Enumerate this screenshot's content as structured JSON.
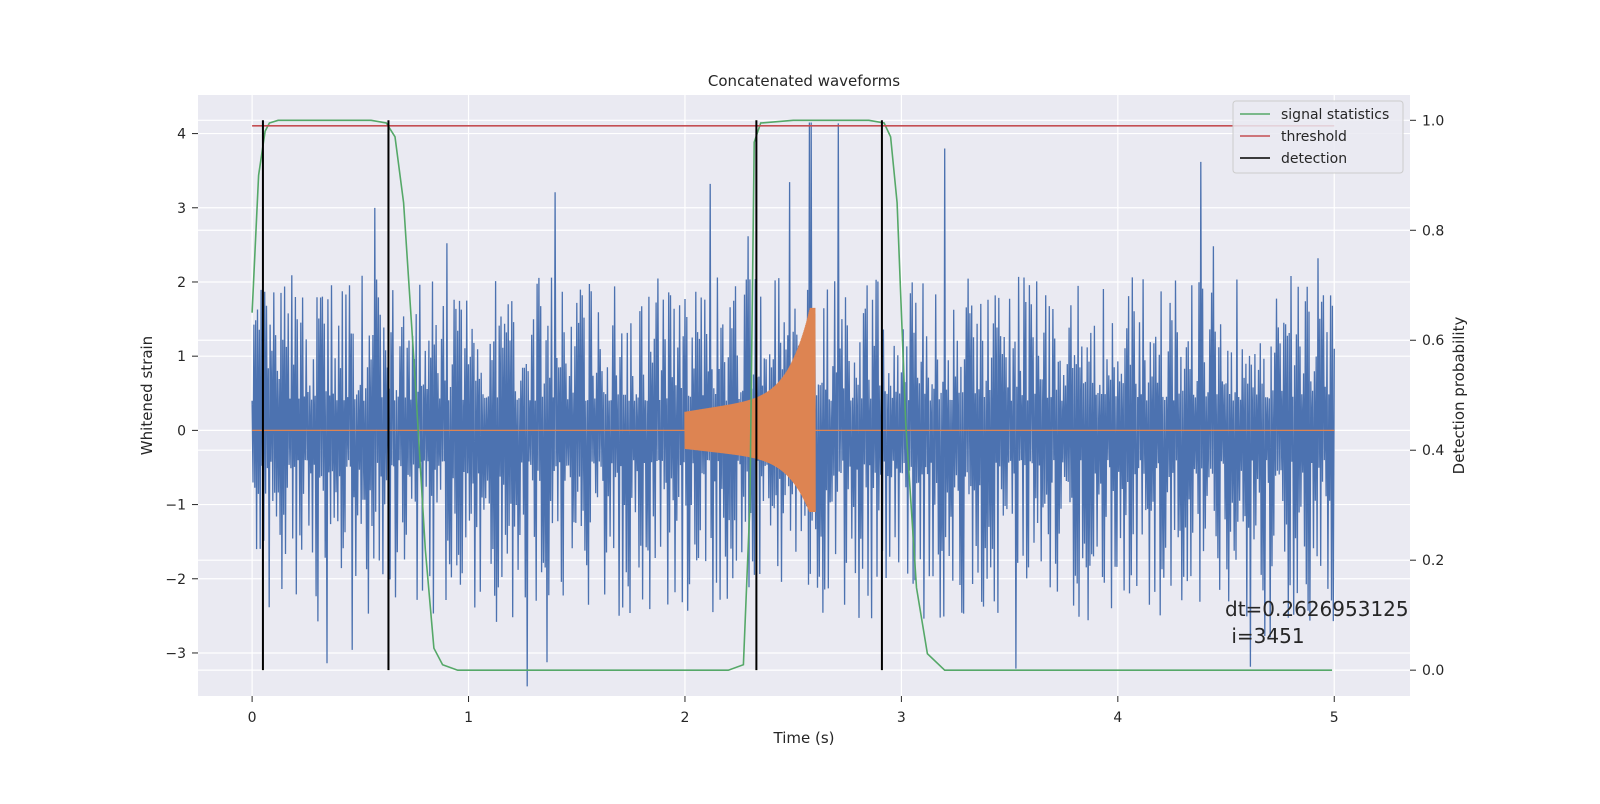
{
  "chart_data": {
    "type": "line",
    "title": "Concatenated waveforms",
    "xlabel": "Time (s)",
    "ylabel": "Whitened strain",
    "y2label": "Detection probability",
    "xlim": [
      -0.25,
      5.35
    ],
    "ylim": [
      -3.58,
      4.52
    ],
    "y2lim": [
      -0.047,
      1.046
    ],
    "xticks": [
      0,
      1,
      2,
      3,
      4,
      5
    ],
    "xtick_labels": [
      "0",
      "1",
      "2",
      "3",
      "4",
      "5"
    ],
    "yticks": [
      -3,
      -2,
      -1,
      0,
      1,
      2,
      3,
      4
    ],
    "ytick_labels": [
      "−3",
      "−2",
      "−1",
      "0",
      "1",
      "2",
      "3",
      "4"
    ],
    "y2ticks": [
      0,
      0.2,
      0.4,
      0.6,
      0.8,
      1.0
    ],
    "y2tick_labels": [
      "0.0",
      "0.2",
      "0.4",
      "0.6",
      "0.8",
      "1.0"
    ],
    "grid": true,
    "legend": {
      "placement": "top-right",
      "entries": [
        {
          "label": "signal statistics",
          "color": "#55a868"
        },
        {
          "label": "threshold",
          "color": "#c44e52"
        },
        {
          "label": "detection",
          "color": "#000000"
        }
      ]
    },
    "annotation": {
      "line1": "dt=0.2626953125",
      "line2": " i=3451"
    },
    "colors": {
      "strain": "#4c72b0",
      "injection": "#dd8452",
      "background": "#eaeaf2",
      "grid": "#ffffff"
    },
    "strain_series": {
      "x_range": [
        0,
        5
      ],
      "points": 1200,
      "band_max": 2.1,
      "band_min": -2.6,
      "max": 4.15,
      "min": -3.45
    },
    "injection_series": {
      "x_range": [
        2.0,
        2.6
      ],
      "start_amplitude": 0.25,
      "peak_amplitude": 1.65,
      "trough_amplitude": -1.1
    },
    "signal_statistics": {
      "x": [
        0.0,
        0.03,
        0.06,
        0.08,
        0.12,
        0.3,
        0.55,
        0.62,
        0.66,
        0.7,
        0.75,
        0.8,
        0.84,
        0.88,
        0.95,
        1.5,
        2.0,
        2.2,
        2.27,
        2.3,
        2.32,
        2.35,
        2.5,
        2.85,
        2.92,
        2.95,
        2.98,
        3.02,
        3.07,
        3.12,
        3.2,
        3.8,
        4.5,
        4.99
      ],
      "y": [
        0.65,
        0.9,
        0.98,
        0.995,
        1.0,
        1.0,
        1.0,
        0.995,
        0.97,
        0.85,
        0.55,
        0.22,
        0.04,
        0.01,
        0.0,
        0.0,
        0.0,
        0.0,
        0.01,
        0.3,
        0.96,
        0.995,
        1.0,
        1.0,
        0.995,
        0.97,
        0.85,
        0.45,
        0.15,
        0.03,
        0.0,
        0.0,
        0.0,
        0.0
      ]
    },
    "threshold": {
      "x": [
        0.0,
        5.0
      ],
      "y": 0.99
    },
    "detections": [
      {
        "x": 0.05,
        "y": [
          0.0,
          1.0
        ]
      },
      {
        "x": 0.63,
        "y": [
          0.0,
          1.0
        ]
      },
      {
        "x": 2.33,
        "y": [
          0.0,
          1.0
        ]
      },
      {
        "x": 2.91,
        "y": [
          0.0,
          1.0
        ]
      }
    ]
  }
}
